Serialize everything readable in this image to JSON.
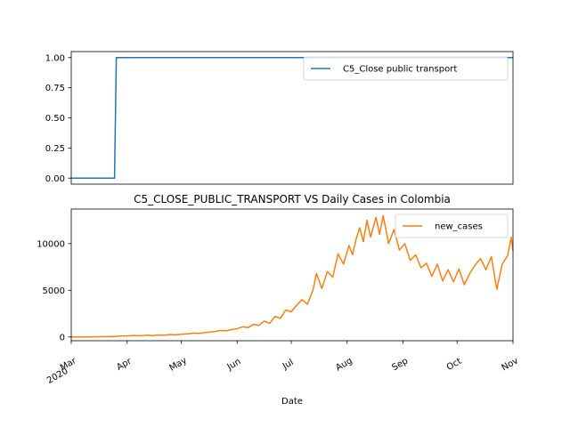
{
  "chart_data": [
    {
      "type": "line",
      "title": "",
      "xlabel": "",
      "ylabel": "",
      "x_range": [
        "2020-03-01",
        "2020-11-01"
      ],
      "ylim": [
        -0.05,
        1.05
      ],
      "y_ticks": [
        0.0,
        0.25,
        0.5,
        0.75,
        1.0
      ],
      "y_tick_labels": [
        "0.00",
        "0.25",
        "0.50",
        "0.75",
        "1.00"
      ],
      "legend": "upper-right",
      "grid": false,
      "series": [
        {
          "name": "C5_Close public transport",
          "color": "#1f77b4",
          "points": [
            [
              "2020-03-01",
              0
            ],
            [
              "2020-03-25",
              0
            ],
            [
              "2020-03-26",
              1
            ],
            [
              "2020-11-01",
              1
            ]
          ]
        }
      ]
    },
    {
      "type": "line",
      "title": "C5_CLOSE_PUBLIC_TRANSPORT VS Daily Cases in Colombia",
      "xlabel": "Date",
      "ylabel": "",
      "x_range": [
        "2020-03-01",
        "2020-11-01"
      ],
      "ylim": [
        -400,
        13700
      ],
      "y_ticks": [
        0,
        5000,
        10000
      ],
      "y_tick_labels": [
        "0",
        "5000",
        "10000"
      ],
      "x_ticks": [
        {
          "date": "2020-03-01",
          "label": "Mar",
          "sublabel": "2020"
        },
        {
          "date": "2020-04-01",
          "label": "Apr"
        },
        {
          "date": "2020-05-01",
          "label": "May"
        },
        {
          "date": "2020-06-01",
          "label": "Jun"
        },
        {
          "date": "2020-07-01",
          "label": "Jul"
        },
        {
          "date": "2020-08-01",
          "label": "Aug"
        },
        {
          "date": "2020-09-01",
          "label": "Sep"
        },
        {
          "date": "2020-10-01",
          "label": "Oct"
        },
        {
          "date": "2020-11-01",
          "label": "Nov"
        }
      ],
      "legend": "upper-right",
      "grid": false,
      "series": [
        {
          "name": "new_cases",
          "color": "#ff7f0e",
          "points": [
            [
              "2020-03-01",
              0
            ],
            [
              "2020-03-10",
              3
            ],
            [
              "2020-03-20",
              40
            ],
            [
              "2020-03-25",
              60
            ],
            [
              "2020-03-28",
              100
            ],
            [
              "2020-04-01",
              110
            ],
            [
              "2020-04-05",
              160
            ],
            [
              "2020-04-08",
              120
            ],
            [
              "2020-04-12",
              190
            ],
            [
              "2020-04-15",
              140
            ],
            [
              "2020-04-18",
              210
            ],
            [
              "2020-04-22",
              200
            ],
            [
              "2020-04-25",
              270
            ],
            [
              "2020-04-28",
              230
            ],
            [
              "2020-05-01",
              290
            ],
            [
              "2020-05-05",
              330
            ],
            [
              "2020-05-08",
              420
            ],
            [
              "2020-05-11",
              380
            ],
            [
              "2020-05-14",
              470
            ],
            [
              "2020-05-17",
              520
            ],
            [
              "2020-05-20",
              600
            ],
            [
              "2020-05-23",
              700
            ],
            [
              "2020-05-26",
              660
            ],
            [
              "2020-05-29",
              800
            ],
            [
              "2020-06-01",
              880
            ],
            [
              "2020-06-04",
              1100
            ],
            [
              "2020-06-07",
              1000
            ],
            [
              "2020-06-10",
              1350
            ],
            [
              "2020-06-13",
              1250
            ],
            [
              "2020-06-16",
              1700
            ],
            [
              "2020-06-19",
              1450
            ],
            [
              "2020-06-22",
              2200
            ],
            [
              "2020-06-25",
              2000
            ],
            [
              "2020-06-28",
              2900
            ],
            [
              "2020-07-01",
              2700
            ],
            [
              "2020-07-04",
              3400
            ],
            [
              "2020-07-07",
              4000
            ],
            [
              "2020-07-10",
              3500
            ],
            [
              "2020-07-13",
              5000
            ],
            [
              "2020-07-15",
              6800
            ],
            [
              "2020-07-18",
              5200
            ],
            [
              "2020-07-21",
              7000
            ],
            [
              "2020-07-24",
              6400
            ],
            [
              "2020-07-27",
              8900
            ],
            [
              "2020-07-30",
              7800
            ],
            [
              "2020-08-02",
              9800
            ],
            [
              "2020-08-04",
              8800
            ],
            [
              "2020-08-06",
              10500
            ],
            [
              "2020-08-08",
              11700
            ],
            [
              "2020-08-10",
              10200
            ],
            [
              "2020-08-12",
              12500
            ],
            [
              "2020-08-14",
              10700
            ],
            [
              "2020-08-17",
              12800
            ],
            [
              "2020-08-19",
              11000
            ],
            [
              "2020-08-21",
              13000
            ],
            [
              "2020-08-24",
              10000
            ],
            [
              "2020-08-27",
              11500
            ],
            [
              "2020-08-30",
              9300
            ],
            [
              "2020-09-02",
              10000
            ],
            [
              "2020-09-05",
              8200
            ],
            [
              "2020-09-08",
              8800
            ],
            [
              "2020-09-11",
              7400
            ],
            [
              "2020-09-14",
              7900
            ],
            [
              "2020-09-17",
              6500
            ],
            [
              "2020-09-20",
              7800
            ],
            [
              "2020-09-23",
              6000
            ],
            [
              "2020-09-26",
              7200
            ],
            [
              "2020-09-29",
              5900
            ],
            [
              "2020-10-02",
              7300
            ],
            [
              "2020-10-05",
              5600
            ],
            [
              "2020-10-08",
              6800
            ],
            [
              "2020-10-11",
              7700
            ],
            [
              "2020-10-14",
              8400
            ],
            [
              "2020-10-17",
              7200
            ],
            [
              "2020-10-20",
              8600
            ],
            [
              "2020-10-23",
              5100
            ],
            [
              "2020-10-26",
              7800
            ],
            [
              "2020-10-29",
              8700
            ],
            [
              "2020-10-31",
              10700
            ],
            [
              "2020-11-01",
              9200
            ]
          ]
        }
      ]
    }
  ]
}
